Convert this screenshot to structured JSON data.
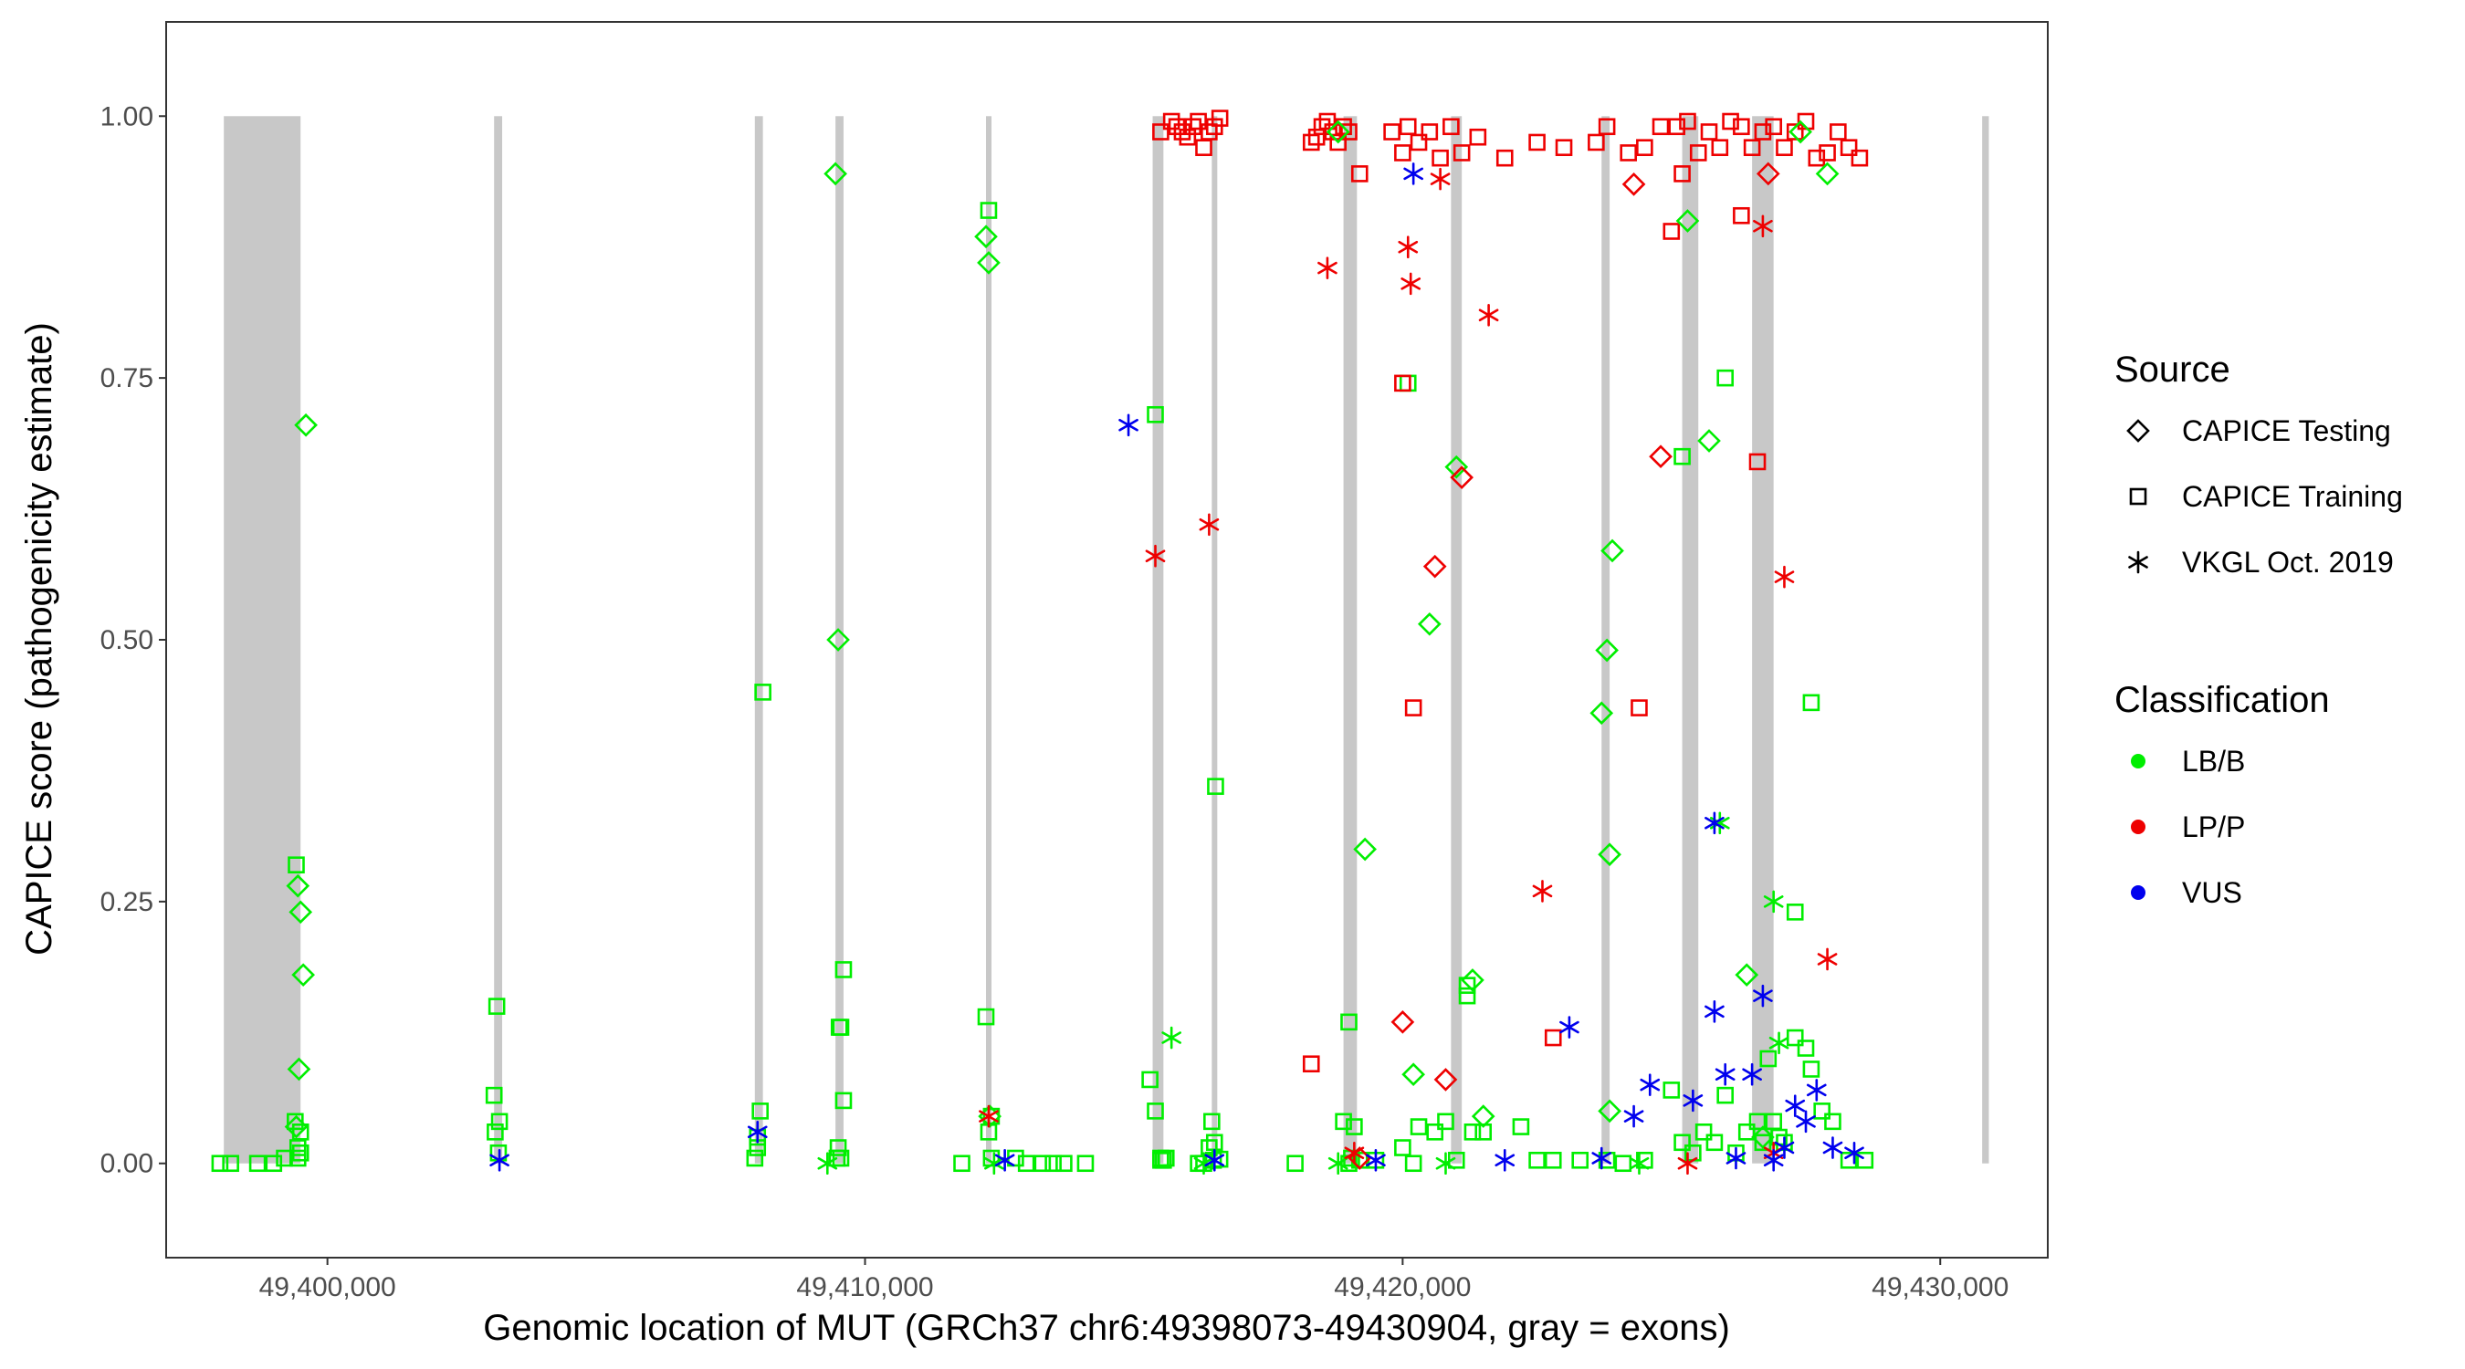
{
  "chart_data": {
    "type": "scatter",
    "xlabel": "Genomic location of MUT (GRCh37 chr6:49398073-49430904, gray = exons)",
    "ylabel": "CAPICE score (pathogenicity estimate)",
    "xlim": [
      49397000,
      49432000
    ],
    "ylim": [
      -0.09,
      1.09
    ],
    "xticks": [
      49400000,
      49410000,
      49420000,
      49430000
    ],
    "xtick_labels": [
      "49,400,000",
      "49,410,000",
      "49,420,000",
      "49,430,000"
    ],
    "yticks": [
      0,
      0.25,
      0.5,
      0.75,
      1
    ],
    "ytick_labels": [
      "0.00",
      "0.25",
      "0.50",
      "0.75",
      "1.00"
    ],
    "grid": false,
    "exons": [
      [
        49398073,
        49399500
      ],
      [
        49403100,
        49403250
      ],
      [
        49407950,
        49408100
      ],
      [
        49409450,
        49409600
      ],
      [
        49412250,
        49412350
      ],
      [
        49415350,
        49415550
      ],
      [
        49416450,
        49416550
      ],
      [
        49418900,
        49419150
      ],
      [
        49420900,
        49421100
      ],
      [
        49423700,
        49423850
      ],
      [
        49425200,
        49425500
      ],
      [
        49426500,
        49426900
      ],
      [
        49430780,
        49430904
      ]
    ],
    "colors": {
      "LB/B": "#00ee00",
      "LP/P": "#ee0000",
      "VUS": "#0000ee",
      "exon": "#c8c8c8"
    },
    "legend": {
      "position": "right",
      "source_title": "Source",
      "source_items": [
        {
          "shape": "diamond",
          "label": "CAPICE Testing"
        },
        {
          "shape": "square",
          "label": "CAPICE Training"
        },
        {
          "shape": "asterisk",
          "label": "VKGL Oct. 2019"
        }
      ],
      "class_title": "Classification",
      "class_items": [
        {
          "cls": "LB/B",
          "label": "LB/B"
        },
        {
          "cls": "LP/P",
          "label": "LP/P"
        },
        {
          "cls": "VUS",
          "label": "VUS"
        }
      ]
    },
    "series": [
      {
        "name": "CAPICE Training - LB/B",
        "shape": "square",
        "cls": "LB/B",
        "x": [
          49398000,
          49398200,
          49398700,
          49399000,
          49399200,
          49399400,
          49399450,
          49399500,
          49399500,
          49399450,
          49399420,
          49403150,
          49403100,
          49403200,
          49403180,
          49403120,
          49407950,
          49408050,
          49408000,
          49408000,
          49408100,
          49409500,
          49409550,
          49409600,
          49409480,
          49409550,
          49409520,
          49409600,
          49412250,
          49412300,
          49412350,
          49412300,
          49412350,
          49412800,
          49413000,
          49413300,
          49413500,
          49413700,
          49414100,
          49411800,
          49415300,
          49415400,
          49415500,
          49415600,
          49415400,
          49415550,
          49415500,
          49416450,
          49416500,
          49416520,
          49416480,
          49416400,
          49416600,
          49418900,
          49419000,
          49419100,
          49419200,
          49419050,
          49419500,
          49420000,
          49420300,
          49420600,
          49420800,
          49421000,
          49421200,
          49421300,
          49421500,
          49422200,
          49422500,
          49422800,
          49423300,
          49423800,
          49424500,
          49425000,
          49425200,
          49425400,
          49425600,
          49425800,
          49426000,
          49426200,
          49426400,
          49426600,
          49426700,
          49426800,
          49426900,
          49427000,
          49427100,
          49427300,
          49427500,
          49427600,
          49427800,
          49428000,
          49428300,
          49428600,
          49416200,
          49416300,
          49418000,
          49419000,
          49420200,
          49424100,
          49427600,
          49426000,
          49425200,
          49427300,
          49420100,
          49421200
        ],
        "y": [
          0,
          0,
          0,
          0,
          0.005,
          0.04,
          0.015,
          0.03,
          0.01,
          0.005,
          0.285,
          0.15,
          0.065,
          0.04,
          0.01,
          0.03,
          0.005,
          0.05,
          0.025,
          0.015,
          0.45,
          0.015,
          0.005,
          0.185,
          0.005,
          0.13,
          0.13,
          0.06,
          0.14,
          0.03,
          0.045,
          0.91,
          0.005,
          0.005,
          0,
          0,
          0,
          0,
          0,
          0,
          0.08,
          0.05,
          0.005,
          0.005,
          0.715,
          0.003,
          0.003,
          0.04,
          0.02,
          0.36,
          0.003,
          0.015,
          0.004,
          0.04,
          0.135,
          0.035,
          0.003,
          0.005,
          0.003,
          0.015,
          0.035,
          0.03,
          0.04,
          0.003,
          0.17,
          0.03,
          0.03,
          0.035,
          0.003,
          0.003,
          0.003,
          0.003,
          0.003,
          0.07,
          0.02,
          0.01,
          0.03,
          0.02,
          0.065,
          0.01,
          0.03,
          0.04,
          0.02,
          0.1,
          0.04,
          0.025,
          0.02,
          0.12,
          0.11,
          0.09,
          0.05,
          0.04,
          0.003,
          0.003,
          0,
          0,
          0,
          0,
          0,
          0,
          0.44,
          0.75,
          0.675,
          0.24,
          0.745,
          0.16
        ]
      },
      {
        "name": "CAPICE Training - LP/P",
        "shape": "square",
        "cls": "LP/P",
        "x": [
          49415500,
          49415700,
          49415800,
          49415900,
          49416000,
          49416100,
          49416200,
          49416300,
          49416400,
          49416500,
          49416600,
          49418300,
          49418400,
          49418500,
          49418600,
          49418700,
          49418800,
          49418900,
          49419000,
          49419200,
          49420000,
          49420100,
          49420300,
          49420500,
          49420700,
          49420900,
          49421100,
          49421400,
          49421900,
          49422500,
          49423000,
          49423800,
          49424200,
          49424500,
          49424800,
          49425100,
          49425300,
          49425500,
          49425700,
          49425900,
          49426100,
          49426300,
          49426500,
          49426700,
          49426900,
          49427100,
          49427300,
          49427500,
          49427700,
          49427900,
          49428100,
          49428300,
          49428500,
          49425000,
          49425200,
          49426300,
          49426600,
          49418300,
          49420000,
          49420200,
          49422800,
          49423600,
          49419800,
          49424400
        ],
        "y": [
          0.985,
          0.995,
          0.99,
          0.985,
          0.98,
          0.99,
          0.995,
          0.97,
          0.985,
          0.99,
          0.998,
          0.975,
          0.98,
          0.99,
          0.995,
          0.985,
          0.975,
          0.99,
          0.985,
          0.945,
          0.965,
          0.99,
          0.975,
          0.985,
          0.96,
          0.99,
          0.965,
          0.98,
          0.96,
          0.975,
          0.97,
          0.99,
          0.965,
          0.97,
          0.99,
          0.99,
          0.995,
          0.965,
          0.985,
          0.97,
          0.995,
          0.99,
          0.97,
          0.985,
          0.99,
          0.97,
          0.985,
          0.995,
          0.96,
          0.965,
          0.985,
          0.97,
          0.96,
          0.89,
          0.945,
          0.905,
          0.67,
          0.095,
          0.745,
          0.435,
          0.12,
          0.975,
          0.985,
          0.435
        ]
      },
      {
        "name": "CAPICE Testing - LB/B",
        "shape": "diamond",
        "cls": "LB/B",
        "x": [
          49399600,
          49399450,
          49399500,
          49399550,
          49399470,
          49399420,
          49409450,
          49409500,
          49412250,
          49412300,
          49412320,
          49418800,
          49419300,
          49420200,
          49420500,
          49421000,
          49421300,
          49421500,
          49423700,
          49423800,
          49423850,
          49423900,
          49423850,
          49425300,
          49425700,
          49426400,
          49426700,
          49427900,
          49427400
        ],
        "y": [
          0.705,
          0.265,
          0.24,
          0.18,
          0.09,
          0.035,
          0.945,
          0.5,
          0.885,
          0.86,
          0.045,
          0.985,
          0.3,
          0.085,
          0.515,
          0.665,
          0.175,
          0.045,
          0.43,
          0.49,
          0.295,
          0.585,
          0.05,
          0.9,
          0.69,
          0.18,
          0.025,
          0.945,
          0.985
        ]
      },
      {
        "name": "CAPICE Testing - LP/P",
        "shape": "diamond",
        "cls": "LP/P",
        "x": [
          49420000,
          49420600,
          49421100,
          49420800,
          49424300,
          49424800,
          49426800,
          49419200
        ],
        "y": [
          0.135,
          0.57,
          0.655,
          0.08,
          0.935,
          0.675,
          0.945,
          0.005
        ]
      },
      {
        "name": "VKGL Oct. 2019 - LB/B",
        "shape": "asterisk",
        "cls": "LB/B",
        "x": [
          49409300,
          49412400,
          49415700,
          49416300,
          49418800,
          49420800,
          49426900,
          49427000,
          49424400,
          49425900
        ],
        "y": [
          0,
          0,
          0.12,
          0,
          0,
          0,
          0.25,
          0.115,
          0,
          0.325
        ]
      },
      {
        "name": "VKGL Oct. 2019 - LP/P",
        "shape": "asterisk",
        "cls": "LP/P",
        "x": [
          49412300,
          49415400,
          49416400,
          49418600,
          49420100,
          49420150,
          49420700,
          49421600,
          49422600,
          49426700,
          49427100,
          49427900,
          49419100,
          49426900,
          49425300
        ],
        "y": [
          0.045,
          0.58,
          0.61,
          0.855,
          0.875,
          0.84,
          0.94,
          0.81,
          0.26,
          0.895,
          0.56,
          0.195,
          0.01,
          0.01,
          0
        ]
      },
      {
        "name": "VKGL Oct. 2019 - VUS",
        "shape": "asterisk",
        "cls": "VUS",
        "x": [
          49403200,
          49408000,
          49412600,
          49414900,
          49416500,
          49419500,
          49420200,
          49421900,
          49423100,
          49423700,
          49424300,
          49424600,
          49425400,
          49425800,
          49426000,
          49426500,
          49426700,
          49426900,
          49427300,
          49427500,
          49427700,
          49428000,
          49428400,
          49426200,
          49425800,
          49427100
        ],
        "y": [
          0.003,
          0.03,
          0.003,
          0.705,
          0.003,
          0.003,
          0.945,
          0.003,
          0.13,
          0.005,
          0.045,
          0.075,
          0.06,
          0.145,
          0.085,
          0.085,
          0.16,
          0.003,
          0.055,
          0.04,
          0.07,
          0.015,
          0.01,
          0.005,
          0.325,
          0.015
        ]
      }
    ]
  }
}
